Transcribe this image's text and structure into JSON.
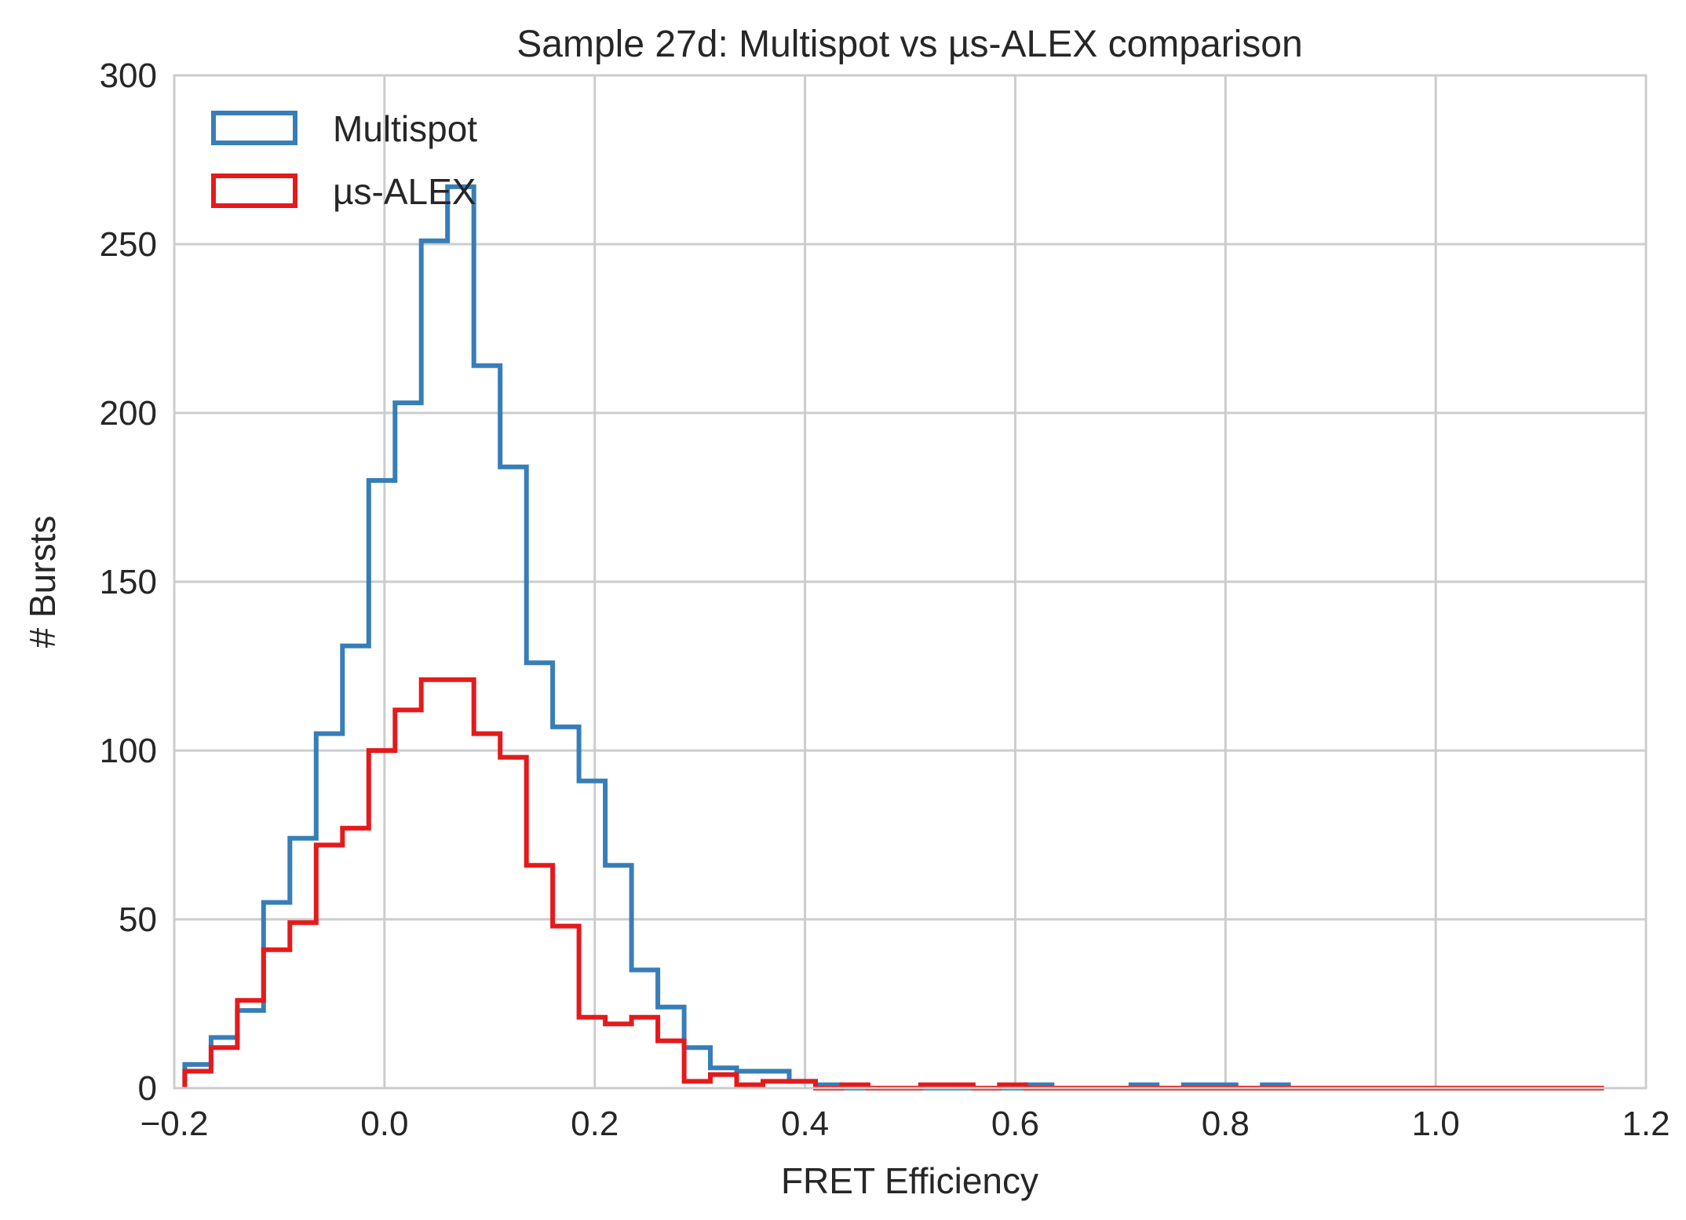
{
  "chart_data": {
    "type": "histogram",
    "title": "Sample 27d: Multispot vs µs-ALEX comparison",
    "xlabel": "FRET Efficiency",
    "ylabel": "# Bursts",
    "xlim": [
      -0.2,
      1.2
    ],
    "ylim": [
      0,
      300
    ],
    "xticks": [
      -0.2,
      0.0,
      0.2,
      0.4,
      0.6,
      0.8,
      1.0,
      1.2
    ],
    "xtick_labels": [
      "−0.2",
      "0.0",
      "0.2",
      "0.4",
      "0.6",
      "0.8",
      "1.0",
      "1.2"
    ],
    "yticks": [
      0,
      50,
      100,
      150,
      200,
      250,
      300
    ],
    "ytick_labels": [
      "0",
      "50",
      "100",
      "150",
      "200",
      "250",
      "300"
    ],
    "grid": true,
    "legend_position": "top-left",
    "bin_edges": [
      -0.19,
      -0.165,
      -0.14,
      -0.115,
      -0.09,
      -0.065,
      -0.04,
      -0.015,
      0.01,
      0.035,
      0.06,
      0.085,
      0.11,
      0.135,
      0.16,
      0.185,
      0.21,
      0.235,
      0.26,
      0.285,
      0.31,
      0.335,
      0.36,
      0.385,
      0.41,
      0.435,
      0.46,
      0.485,
      0.51,
      0.535,
      0.56,
      0.585,
      0.61,
      0.635,
      0.66,
      0.685,
      0.71,
      0.735,
      0.76,
      0.785,
      0.81,
      0.835,
      0.86,
      0.885,
      0.91,
      0.935,
      0.96,
      0.985,
      1.01,
      1.035,
      1.06,
      1.085,
      1.11,
      1.135,
      1.16,
      1.185
    ],
    "series": [
      {
        "name": "Multispot",
        "color": "#377eb8",
        "values": [
          7,
          15,
          23,
          55,
          74,
          105,
          131,
          180,
          203,
          251,
          267,
          214,
          184,
          126,
          107,
          91,
          66,
          35,
          24,
          12,
          6,
          5,
          5,
          2,
          1,
          0,
          0,
          0,
          0,
          0,
          0,
          0,
          1,
          0,
          0,
          0,
          1,
          0,
          1,
          1,
          0,
          1,
          0,
          0,
          0,
          0,
          0,
          0,
          0,
          0,
          0,
          0,
          0,
          0
        ]
      },
      {
        "name": "µs-ALEX",
        "color": "#e41a1c",
        "values": [
          5,
          12,
          26,
          41,
          49,
          72,
          77,
          100,
          112,
          121,
          121,
          105,
          98,
          66,
          48,
          21,
          19,
          21,
          14,
          2,
          4,
          1,
          2,
          2,
          0,
          1,
          0,
          0,
          1,
          1,
          0,
          1,
          0,
          0,
          0,
          0,
          0,
          0,
          0,
          0,
          0,
          0,
          0,
          0,
          0,
          0,
          0,
          0,
          0,
          0,
          0,
          0,
          0,
          0
        ]
      }
    ]
  }
}
